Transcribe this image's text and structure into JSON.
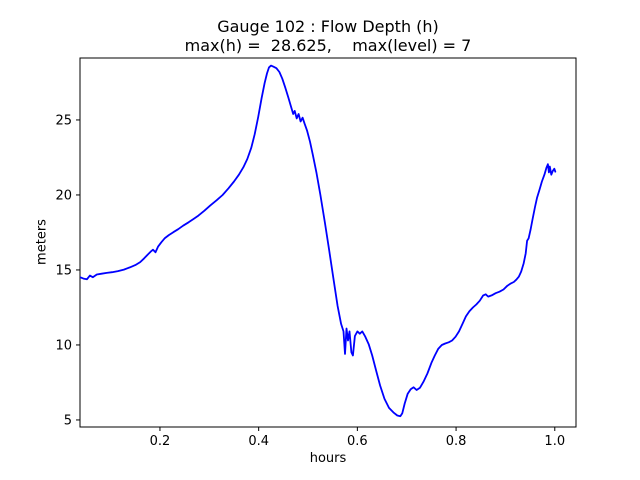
{
  "chart": {
    "title_line1": "Gauge 102 : Flow Depth (h)",
    "title_line2": "max(h) =  28.625,    max(level) = 7",
    "xlabel": "hours",
    "ylabel": "meters"
  },
  "chart_data": {
    "type": "line",
    "title": "Gauge 102 : Flow Depth (h)",
    "subtitle": "max(h) =  28.625,    max(level) = 7",
    "xlabel": "hours",
    "ylabel": "meters",
    "max_h": 28.625,
    "max_level": 7,
    "xlim": [
      0.038,
      1.043
    ],
    "ylim": [
      4.53,
      29.13
    ],
    "xticks": [
      0.2,
      0.4,
      0.6,
      0.8,
      1.0
    ],
    "yticks": [
      5,
      10,
      15,
      20,
      25
    ],
    "grid": false,
    "legend": "none",
    "line_color": "#0000ff",
    "line_width": 1.8,
    "axis_color": "#000000",
    "series": [
      {
        "name": "flow-depth-h",
        "points": [
          [
            0.038,
            14.52
          ],
          [
            0.045,
            14.42
          ],
          [
            0.052,
            14.38
          ],
          [
            0.058,
            14.62
          ],
          [
            0.064,
            14.52
          ],
          [
            0.072,
            14.7
          ],
          [
            0.082,
            14.75
          ],
          [
            0.092,
            14.8
          ],
          [
            0.103,
            14.85
          ],
          [
            0.115,
            14.92
          ],
          [
            0.127,
            15.02
          ],
          [
            0.139,
            15.17
          ],
          [
            0.15,
            15.32
          ],
          [
            0.16,
            15.52
          ],
          [
            0.168,
            15.78
          ],
          [
            0.175,
            16.02
          ],
          [
            0.181,
            16.22
          ],
          [
            0.186,
            16.35
          ],
          [
            0.191,
            16.18
          ],
          [
            0.196,
            16.55
          ],
          [
            0.203,
            16.85
          ],
          [
            0.21,
            17.12
          ],
          [
            0.218,
            17.32
          ],
          [
            0.227,
            17.52
          ],
          [
            0.237,
            17.72
          ],
          [
            0.247,
            17.95
          ],
          [
            0.258,
            18.18
          ],
          [
            0.268,
            18.4
          ],
          [
            0.278,
            18.62
          ],
          [
            0.29,
            18.95
          ],
          [
            0.302,
            19.3
          ],
          [
            0.315,
            19.65
          ],
          [
            0.327,
            20.0
          ],
          [
            0.339,
            20.45
          ],
          [
            0.35,
            20.9
          ],
          [
            0.36,
            21.35
          ],
          [
            0.369,
            21.85
          ],
          [
            0.377,
            22.4
          ],
          [
            0.385,
            23.15
          ],
          [
            0.392,
            24.05
          ],
          [
            0.399,
            25.2
          ],
          [
            0.406,
            26.45
          ],
          [
            0.412,
            27.45
          ],
          [
            0.417,
            28.1
          ],
          [
            0.421,
            28.5
          ],
          [
            0.425,
            28.62
          ],
          [
            0.43,
            28.55
          ],
          [
            0.436,
            28.45
          ],
          [
            0.442,
            28.2
          ],
          [
            0.448,
            27.75
          ],
          [
            0.454,
            27.15
          ],
          [
            0.46,
            26.5
          ],
          [
            0.466,
            25.85
          ],
          [
            0.47,
            25.4
          ],
          [
            0.473,
            25.6
          ],
          [
            0.477,
            25.1
          ],
          [
            0.481,
            25.4
          ],
          [
            0.485,
            24.9
          ],
          [
            0.489,
            25.15
          ],
          [
            0.493,
            24.75
          ],
          [
            0.498,
            24.3
          ],
          [
            0.504,
            23.55
          ],
          [
            0.51,
            22.65
          ],
          [
            0.517,
            21.5
          ],
          [
            0.525,
            20.0
          ],
          [
            0.534,
            18.2
          ],
          [
            0.543,
            16.3
          ],
          [
            0.552,
            14.3
          ],
          [
            0.56,
            12.6
          ],
          [
            0.567,
            11.4
          ],
          [
            0.572,
            10.9
          ],
          [
            0.575,
            9.4
          ],
          [
            0.578,
            11.1
          ],
          [
            0.581,
            10.3
          ],
          [
            0.584,
            10.9
          ],
          [
            0.588,
            9.5
          ],
          [
            0.591,
            9.3
          ],
          [
            0.595,
            10.6
          ],
          [
            0.6,
            10.9
          ],
          [
            0.605,
            10.75
          ],
          [
            0.61,
            10.9
          ],
          [
            0.616,
            10.55
          ],
          [
            0.623,
            10.05
          ],
          [
            0.63,
            9.3
          ],
          [
            0.638,
            8.3
          ],
          [
            0.646,
            7.3
          ],
          [
            0.655,
            6.4
          ],
          [
            0.664,
            5.8
          ],
          [
            0.673,
            5.5
          ],
          [
            0.681,
            5.3
          ],
          [
            0.687,
            5.25
          ],
          [
            0.691,
            5.45
          ],
          [
            0.696,
            6.1
          ],
          [
            0.702,
            6.75
          ],
          [
            0.708,
            7.05
          ],
          [
            0.714,
            7.18
          ],
          [
            0.72,
            7.0
          ],
          [
            0.727,
            7.15
          ],
          [
            0.734,
            7.55
          ],
          [
            0.742,
            8.1
          ],
          [
            0.75,
            8.8
          ],
          [
            0.757,
            9.3
          ],
          [
            0.764,
            9.75
          ],
          [
            0.771,
            10.0
          ],
          [
            0.778,
            10.1
          ],
          [
            0.785,
            10.18
          ],
          [
            0.792,
            10.3
          ],
          [
            0.799,
            10.55
          ],
          [
            0.806,
            10.9
          ],
          [
            0.813,
            11.4
          ],
          [
            0.82,
            11.9
          ],
          [
            0.827,
            12.25
          ],
          [
            0.834,
            12.5
          ],
          [
            0.841,
            12.7
          ],
          [
            0.848,
            12.95
          ],
          [
            0.855,
            13.3
          ],
          [
            0.86,
            13.38
          ],
          [
            0.865,
            13.22
          ],
          [
            0.872,
            13.3
          ],
          [
            0.88,
            13.45
          ],
          [
            0.888,
            13.55
          ],
          [
            0.896,
            13.7
          ],
          [
            0.904,
            13.95
          ],
          [
            0.911,
            14.1
          ],
          [
            0.917,
            14.2
          ],
          [
            0.922,
            14.35
          ],
          [
            0.927,
            14.55
          ],
          [
            0.932,
            14.9
          ],
          [
            0.937,
            15.45
          ],
          [
            0.941,
            16.1
          ],
          [
            0.944,
            16.95
          ],
          [
            0.947,
            17.1
          ],
          [
            0.951,
            17.7
          ],
          [
            0.955,
            18.4
          ],
          [
            0.96,
            19.2
          ],
          [
            0.964,
            19.8
          ],
          [
            0.969,
            20.35
          ],
          [
            0.974,
            20.9
          ],
          [
            0.979,
            21.35
          ],
          [
            0.983,
            21.8
          ],
          [
            0.986,
            22.05
          ],
          [
            0.988,
            21.5
          ],
          [
            0.99,
            21.9
          ],
          [
            0.993,
            21.35
          ],
          [
            0.996,
            21.6
          ],
          [
            0.999,
            21.75
          ],
          [
            1.001,
            21.55
          ]
        ]
      }
    ]
  }
}
